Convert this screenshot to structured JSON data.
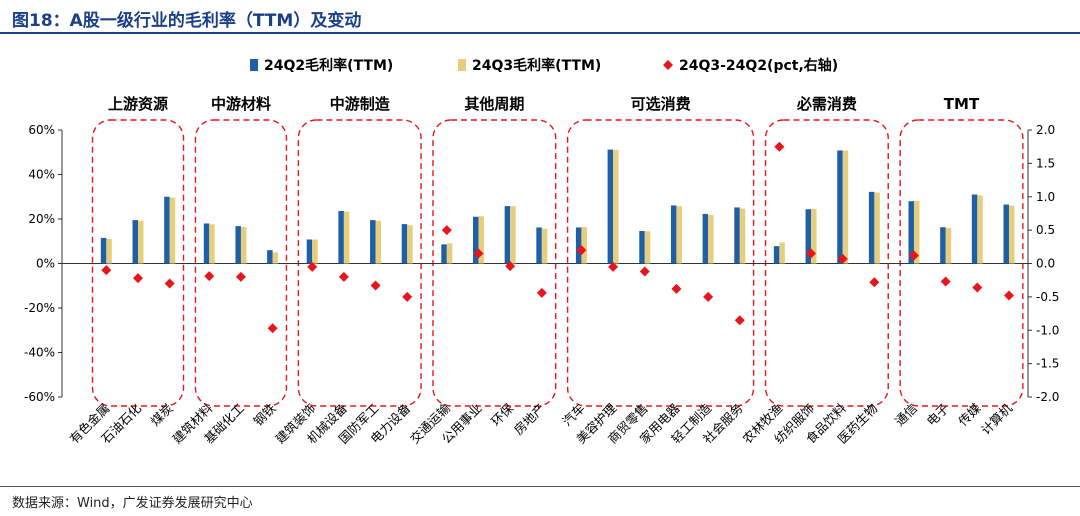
{
  "figure": {
    "title": "图18：A股一级行业的毛利率（TTM）及变动",
    "source": "数据来源：Wind，广发证券发展研究中心"
  },
  "chart_data": {
    "type": "bar",
    "legend": {
      "placement": "top-center",
      "entries": [
        "24Q2毛利率(TTM)",
        "24Q3毛利率(TTM)",
        "24Q3-24Q2(pct,右轴)"
      ]
    },
    "colors": {
      "q2": "#1f5fa8",
      "q3": "#e6cf7c",
      "diff": "#e8151b",
      "group_border": "#e8151b"
    },
    "y_left": {
      "min": -60,
      "max": 60,
      "step": 20,
      "unit": "%",
      "tick_labels": [
        "60%",
        "40%",
        "20%",
        "0%",
        "-20%",
        "-40%",
        "-60%"
      ]
    },
    "y_right": {
      "min": -2.0,
      "max": 2.0,
      "step": 0.5,
      "tick_labels": [
        "2.0",
        "1.5",
        "1.0",
        "0.5",
        "0.0",
        "-0.5",
        "-1.0",
        "-1.5",
        "-2.0"
      ]
    },
    "grid": false,
    "groups": [
      {
        "name": "上游资源",
        "items": [
          {
            "name": "有色金属",
            "q2": 11.5,
            "q3": 11.0,
            "diff": -0.1
          },
          {
            "name": "石油石化",
            "q2": 19.5,
            "q3": 19.2,
            "diff": -0.22
          },
          {
            "name": "煤炭",
            "q2": 30.0,
            "q3": 29.6,
            "diff": -0.3
          }
        ]
      },
      {
        "name": "中游材料",
        "items": [
          {
            "name": "建筑材料",
            "q2": 18.0,
            "q3": 17.6,
            "diff": -0.19
          },
          {
            "name": "基础化工",
            "q2": 16.8,
            "q3": 16.4,
            "diff": -0.2
          },
          {
            "name": "钢铁",
            "q2": 6.0,
            "q3": 5.0,
            "diff": -0.97
          }
        ]
      },
      {
        "name": "中游制造",
        "items": [
          {
            "name": "建筑装饰",
            "q2": 10.8,
            "q3": 10.8,
            "diff": -0.05
          },
          {
            "name": "机械设备",
            "q2": 23.6,
            "q3": 23.3,
            "diff": -0.2
          },
          {
            "name": "国防军工",
            "q2": 19.5,
            "q3": 19.2,
            "diff": -0.33
          },
          {
            "name": "电力设备",
            "q2": 17.7,
            "q3": 17.2,
            "diff": -0.5
          }
        ]
      },
      {
        "name": "其他周期",
        "items": [
          {
            "name": "交通运输",
            "q2": 8.6,
            "q3": 9.1,
            "diff": 0.5
          },
          {
            "name": "公用事业",
            "q2": 21.0,
            "q3": 21.2,
            "diff": 0.15
          },
          {
            "name": "环保",
            "q2": 25.8,
            "q3": 25.8,
            "diff": -0.04
          },
          {
            "name": "房地产",
            "q2": 16.2,
            "q3": 15.7,
            "diff": -0.44
          }
        ]
      },
      {
        "name": "可选消费",
        "items": [
          {
            "name": "汽车",
            "q2": 16.2,
            "q3": 16.4,
            "diff": 0.2
          },
          {
            "name": "美容护理",
            "q2": 51.2,
            "q3": 51.1,
            "diff": -0.05
          },
          {
            "name": "商贸零售",
            "q2": 14.6,
            "q3": 14.5,
            "diff": -0.12
          },
          {
            "name": "家用电器",
            "q2": 26.1,
            "q3": 25.7,
            "diff": -0.38
          },
          {
            "name": "轻工制造",
            "q2": 22.3,
            "q3": 21.8,
            "diff": -0.5
          },
          {
            "name": "社会服务",
            "q2": 25.2,
            "q3": 24.7,
            "diff": -0.85
          }
        ]
      },
      {
        "name": "必需消费",
        "items": [
          {
            "name": "农林牧渔",
            "q2": 7.8,
            "q3": 9.5,
            "diff": 1.75
          },
          {
            "name": "纺织服饰",
            "q2": 24.4,
            "q3": 24.5,
            "diff": 0.15
          },
          {
            "name": "食品饮料",
            "q2": 50.8,
            "q3": 50.8,
            "diff": 0.07
          },
          {
            "name": "医药生物",
            "q2": 32.2,
            "q3": 31.9,
            "diff": -0.28
          }
        ]
      },
      {
        "name": "TMT",
        "items": [
          {
            "name": "通信",
            "q2": 28.0,
            "q3": 28.1,
            "diff": 0.12
          },
          {
            "name": "电子",
            "q2": 16.3,
            "q3": 16.0,
            "diff": -0.27
          },
          {
            "name": "传媒",
            "q2": 31.0,
            "q3": 30.6,
            "diff": -0.36
          },
          {
            "name": "计算机",
            "q2": 26.5,
            "q3": 26.0,
            "diff": -0.48
          }
        ]
      }
    ]
  }
}
